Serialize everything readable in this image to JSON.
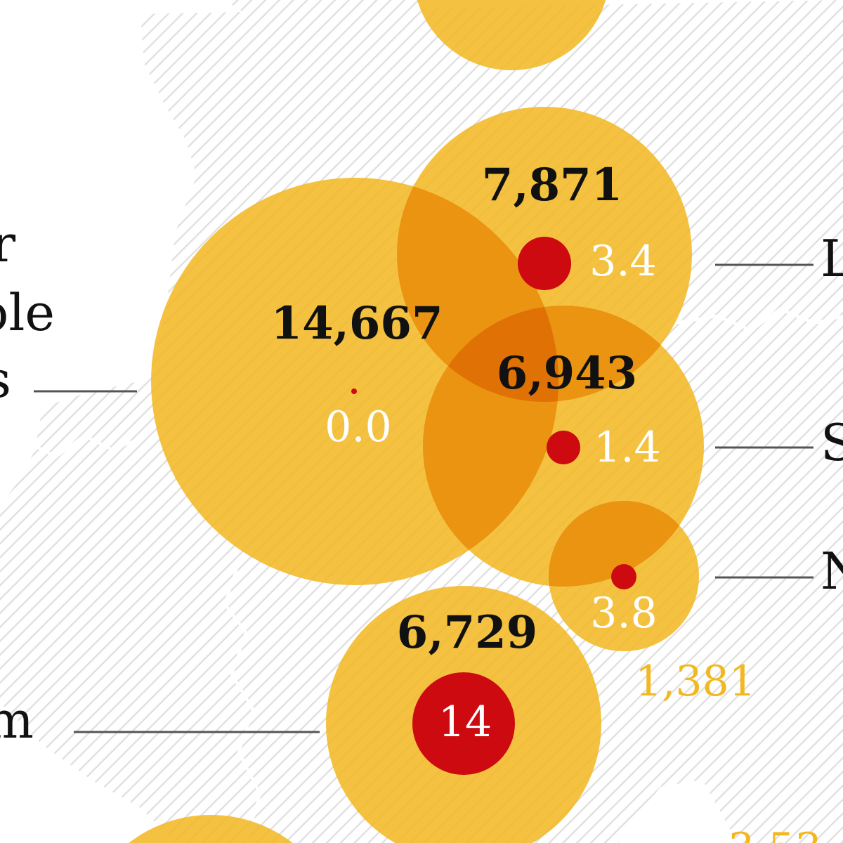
{
  "colors": {
    "bubble": "#f2b821",
    "dot": "#cc0a0f",
    "hatch_background": "#e6e6e6",
    "leader": "#555555"
  },
  "side_labels_left": [
    "r",
    "ole",
    "s",
    "m"
  ],
  "side_labels_right": [
    "L",
    "S",
    "N"
  ],
  "bubbles": [
    {
      "total": "14,667",
      "rate": "0.0"
    },
    {
      "total": "7,871",
      "rate": "3.4"
    },
    {
      "total": "6,943",
      "rate": "1.4"
    },
    {
      "total": "",
      "rate": "3.8"
    },
    {
      "total": "6,729",
      "rate": "14"
    }
  ],
  "outside_labels": [
    "1,381",
    "3,53"
  ]
}
